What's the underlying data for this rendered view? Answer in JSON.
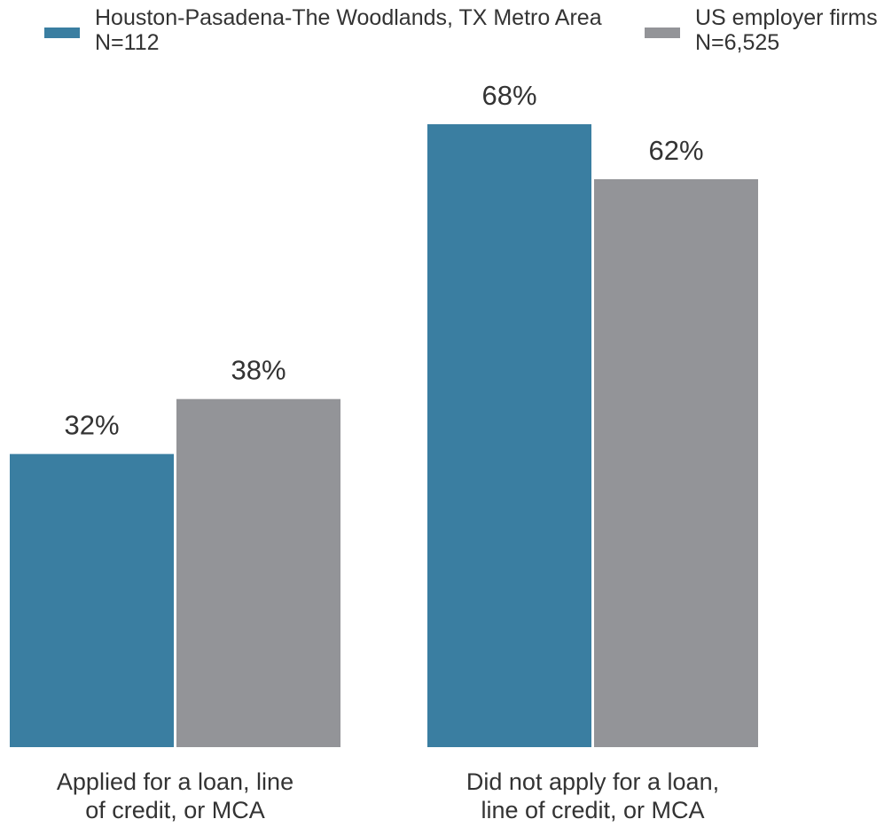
{
  "chart_data": {
    "type": "bar",
    "categories": [
      [
        "Applied for a loan, line",
        "of credit, or MCA"
      ],
      [
        "Did not apply for a loan,",
        "line of credit, or MCA"
      ]
    ],
    "series": [
      {
        "name": "Houston-Pasadena-The Woodlands, TX Metro Area",
        "n_label": "N=112",
        "color": "#3a7ea1",
        "values": [
          32,
          68
        ],
        "labels": [
          "32%",
          "68%"
        ]
      },
      {
        "name": "US employer firms",
        "n_label": "N=6,525",
        "color": "#939498",
        "values": [
          38,
          62
        ],
        "labels": [
          "38%",
          "62%"
        ]
      }
    ],
    "ylim": [
      0,
      70
    ],
    "grid": false,
    "legend_position": "top"
  }
}
